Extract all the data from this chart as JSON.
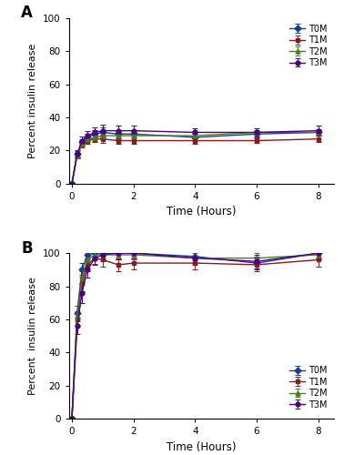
{
  "time_points": [
    0,
    0.17,
    0.33,
    0.5,
    0.75,
    1.0,
    1.5,
    2.0,
    4.0,
    6.0,
    8.0
  ],
  "sgf": {
    "T0M": {
      "y": [
        0,
        18,
        25,
        28,
        30,
        31,
        30,
        30,
        28,
        30,
        31
      ],
      "err": [
        0,
        1.5,
        2,
        2,
        2.5,
        3,
        2.5,
        2,
        2,
        2,
        2
      ]
    },
    "T1M": {
      "y": [
        0,
        17,
        24,
        26,
        27,
        27,
        26,
        26,
        26,
        26,
        27
      ],
      "err": [
        0,
        1.5,
        2,
        2,
        2,
        2.5,
        2,
        2,
        2,
        1.5,
        2
      ]
    },
    "T2M": {
      "y": [
        0,
        17,
        24,
        27,
        28,
        29,
        29,
        29,
        29,
        31,
        31
      ],
      "err": [
        0,
        1.5,
        1.5,
        1.5,
        2,
        2,
        2,
        1.5,
        1.5,
        1.5,
        1.5
      ]
    },
    "T3M": {
      "y": [
        0,
        18,
        26,
        29,
        31,
        32,
        32,
        32,
        31,
        31,
        32
      ],
      "err": [
        0,
        2,
        2.5,
        3,
        3,
        3.5,
        3,
        3,
        2.5,
        2.5,
        3
      ]
    }
  },
  "sif": {
    "T0M": {
      "y": [
        0,
        64,
        90,
        99,
        100,
        100,
        100,
        100,
        98,
        94,
        100
      ],
      "err": [
        0,
        4,
        4,
        3,
        3,
        4,
        3,
        3,
        4,
        4,
        3
      ]
    },
    "T1M": {
      "y": [
        0,
        60,
        82,
        93,
        97,
        96,
        93,
        94,
        94,
        93,
        96
      ],
      "err": [
        0,
        4,
        5,
        4,
        3.5,
        4,
        4,
        4,
        4,
        4,
        4
      ]
    },
    "T2M": {
      "y": [
        0,
        62,
        85,
        96,
        99,
        99,
        99,
        99,
        97,
        97,
        99
      ],
      "err": [
        0,
        3,
        4,
        3.5,
        3,
        3,
        3,
        3,
        3,
        3,
        3
      ]
    },
    "T3M": {
      "y": [
        0,
        56,
        76,
        90,
        97,
        99,
        100,
        100,
        97,
        95,
        100
      ],
      "err": [
        0,
        5,
        6,
        5,
        4,
        4,
        3.5,
        3,
        4,
        4,
        4
      ]
    }
  },
  "colors": {
    "T0M": "#1e3a8a",
    "T1M": "#8b1a1a",
    "T2M": "#4a7c1f",
    "T3M": "#4b0082"
  },
  "markers": {
    "T0M": "D",
    "T1M": "s",
    "T2M": "^",
    "T3M": "o"
  },
  "ylabel_a": "Percent insulin release",
  "ylabel_b": "Percent  insulin release",
  "xlabel": "Time (Hours)",
  "ylim": [
    0,
    100
  ],
  "yticks": [
    0,
    20,
    40,
    60,
    80,
    100
  ],
  "xticks": [
    0,
    2,
    4,
    6,
    8
  ],
  "xlim": [
    -0.1,
    8.5
  ],
  "label_A": "A",
  "label_B": "B",
  "series_labels": [
    "T0M",
    "T1M",
    "T2M",
    "T3M"
  ]
}
